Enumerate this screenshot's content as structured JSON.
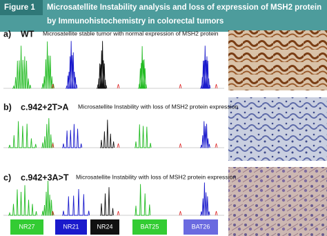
{
  "header": {
    "figure_label": "Figure 1",
    "title_lines": [
      "Microsatellite Instability analysis and loss of expression of MSH2 protein",
      "by Immunohistochemistry in colorectal tumors"
    ]
  },
  "panels": [
    {
      "label": "a)",
      "genotype": "WT",
      "caption": "Microsatellite stable tumor with normal expression of MSH2 protein"
    },
    {
      "label": "b)",
      "genotype": "c.942+2T>A",
      "caption": "Microsatellite Instability  with loss of MSH2 protein expression"
    },
    {
      "label": "c)",
      "genotype": "c.942+3A>T",
      "caption": "Microsatellite Instability  with loss of MSH2 protein expression"
    }
  ],
  "markers": [
    "NR27",
    "NR21",
    "NR24",
    "BAT25",
    "BAT26"
  ]
}
